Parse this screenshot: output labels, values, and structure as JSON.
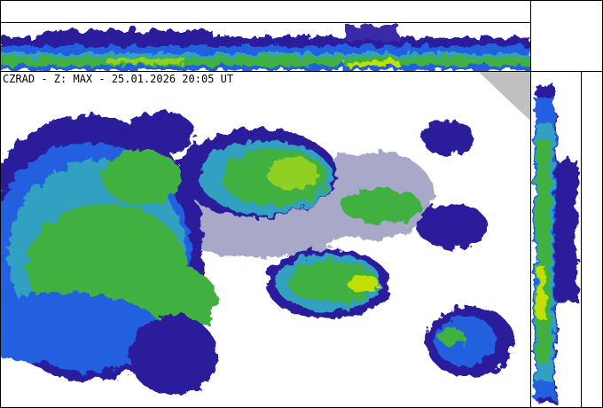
{
  "header": {
    "title": "CZRAD - Z: MAX - 25.01.2026 20:05 UT"
  }
}
